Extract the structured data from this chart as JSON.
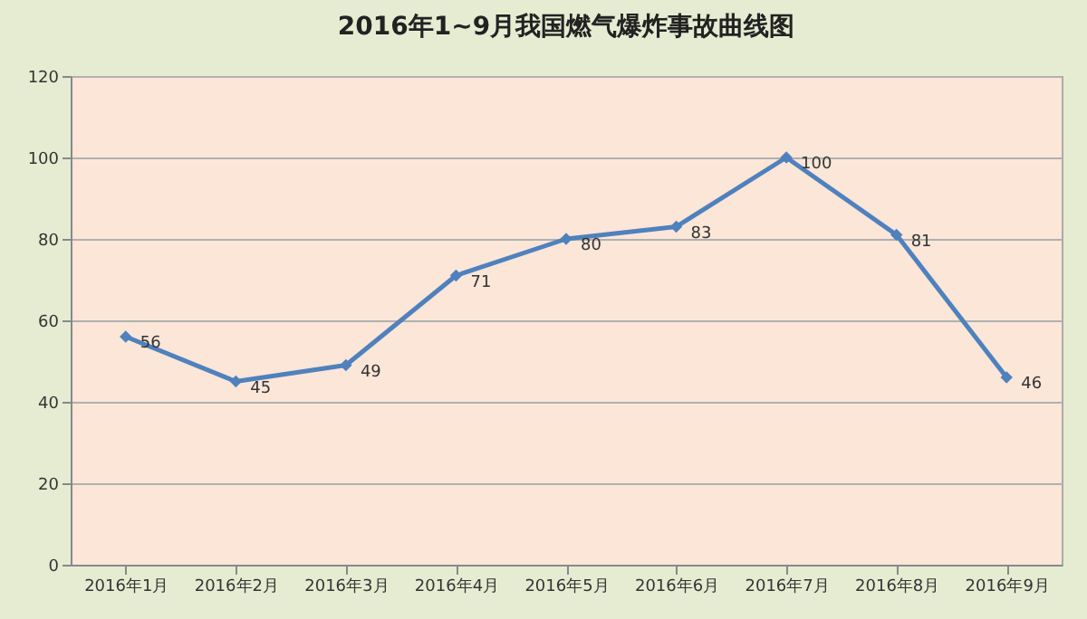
{
  "chart_data": {
    "type": "line",
    "title": "2016年1~9月我国燃气爆炸事故曲线图",
    "categories": [
      "2016年1月",
      "2016年2月",
      "2016年3月",
      "2016年4月",
      "2016年5月",
      "2016年6月",
      "2016年7月",
      "2016年8月",
      "2016年9月"
    ],
    "series": [
      {
        "color": "#4f81bd",
        "values": [
          56,
          45,
          49,
          71,
          80,
          83,
          100,
          81,
          46
        ]
      }
    ],
    "ylim": [
      0,
      120
    ],
    "yticks": [
      0,
      20,
      40,
      60,
      80,
      100,
      120
    ],
    "grid": "y",
    "marker": "diamond",
    "line_style": "solid",
    "data_labels": true,
    "legend": false
  }
}
